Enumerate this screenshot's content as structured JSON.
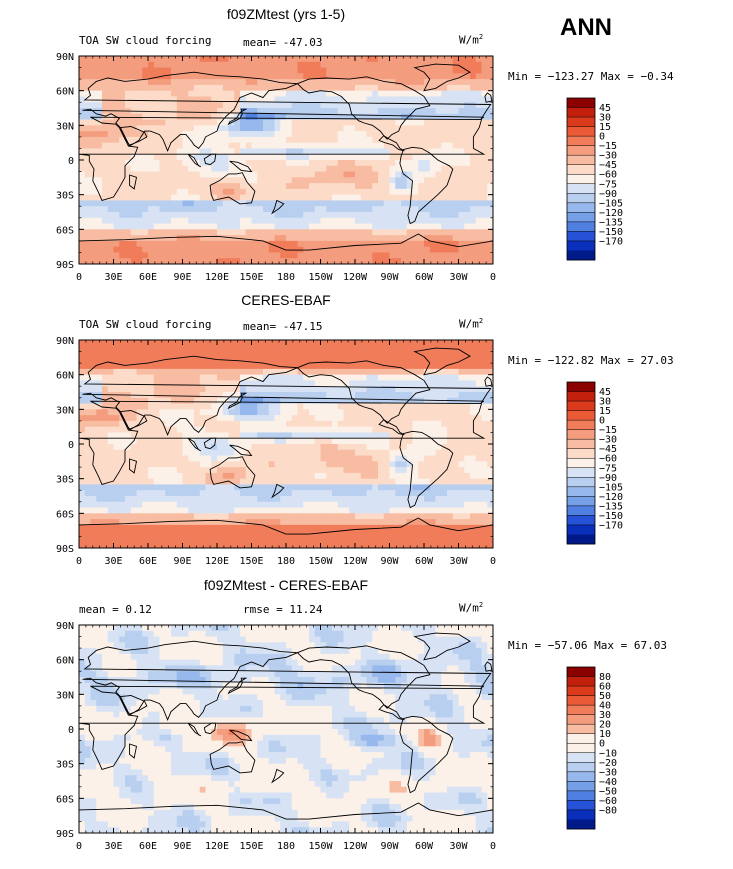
{
  "season": "ANN",
  "units_base": "W/m",
  "units_sup": "2",
  "x_ticks": [
    "0",
    "30E",
    "60E",
    "90E",
    "120E",
    "150E",
    "180",
    "150W",
    "120W",
    "90W",
    "60W",
    "30W",
    "0"
  ],
  "y_ticks": [
    "90N",
    "60N",
    "30N",
    "0",
    "30S",
    "60S",
    "90S"
  ],
  "panels": [
    {
      "title": "f09ZMtest (yrs 1-5)",
      "left_label": "TOA SW cloud forcing",
      "stat_label": "mean= -47.03",
      "minmax": "Min = −123.27 Max =  −0.34",
      "scale": "abs",
      "mean_value": -47.03,
      "min_value": -123.27,
      "max_value": -0.34
    },
    {
      "title": "CERES-EBAF",
      "left_label": "TOA SW cloud forcing",
      "stat_label": "mean= -47.15",
      "minmax": "Min = −122.82 Max =  27.03",
      "scale": "abs",
      "mean_value": -47.15,
      "min_value": -122.82,
      "max_value": 27.03
    },
    {
      "title": "f09ZMtest - CERES-EBAF",
      "left_label": "mean =    0.12",
      "stat_label": "rmse =  11.24",
      "minmax": "Min = −57.06 Max =  67.03",
      "scale": "diff",
      "mean_value": 0.12,
      "rmse_value": 11.24,
      "min_value": -57.06,
      "max_value": 67.03
    }
  ],
  "colorbars": {
    "abs": {
      "labels": [
        "45",
        "30",
        "15",
        "0",
        "−15",
        "−30",
        "−45",
        "−60",
        "−75",
        "−90",
        "−105",
        "−120",
        "−135",
        "−150",
        "−170"
      ],
      "colors": [
        "#8b0000",
        "#c2200c",
        "#dc3a1c",
        "#ea5a36",
        "#f07c5a",
        "#f49c7e",
        "#f8bca2",
        "#fcdcc8",
        "#fbf1e8",
        "#d7e3f4",
        "#b8cff0",
        "#97b8ec",
        "#759fe6",
        "#4f7fe0",
        "#2552d6",
        "#0a2fba",
        "#001a8a"
      ]
    },
    "diff": {
      "labels": [
        "80",
        "60",
        "50",
        "40",
        "30",
        "20",
        "10",
        "0",
        "−10",
        "−20",
        "−30",
        "−40",
        "−50",
        "−60",
        "−80"
      ],
      "colors": [
        "#8b0000",
        "#c2200c",
        "#dc3a1c",
        "#ea5a36",
        "#f07c5a",
        "#f49c7e",
        "#f8bca2",
        "#fbf1e8",
        "#fbf1e8",
        "#d7e3f4",
        "#b8cff0",
        "#97b8ec",
        "#759fe6",
        "#4f7fe0",
        "#2552d6",
        "#0a2fba",
        "#001a8a"
      ]
    }
  }
}
